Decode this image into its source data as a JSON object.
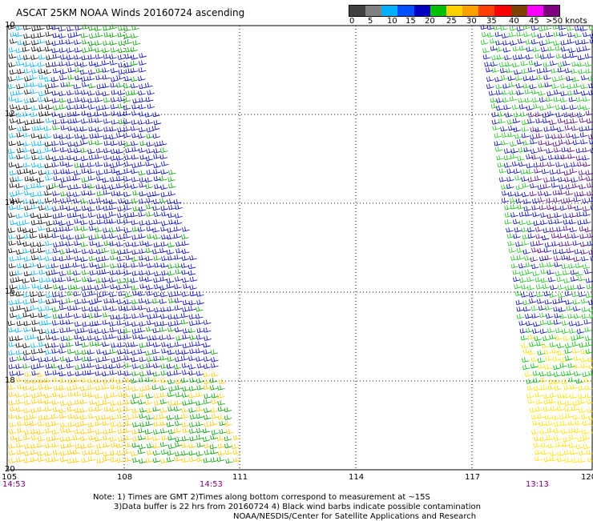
{
  "title": "ASCAT 25KM NOAA Winds 20160724 ascending",
  "colorbar": {
    "labels": [
      "0",
      "5",
      "10",
      "15",
      "20",
      "25",
      "30",
      "35",
      "40",
      "45",
      ">50 knots"
    ],
    "colors": [
      "#404040",
      "#808080",
      "#00b0ff",
      "#0050ff",
      "#0000c0",
      "#00c000",
      "#ffd000",
      "#ffa000",
      "#ff4000",
      "#ff0000",
      "#804000",
      "#ff00ff",
      "#800080"
    ]
  },
  "map": {
    "lat_labels": [
      "10",
      "12",
      "14",
      "16",
      "18",
      "20"
    ],
    "lon_labels": [
      "105",
      "108",
      "111",
      "114",
      "117",
      "120"
    ],
    "time_labels": [
      "14:53",
      "14:53",
      "13:13"
    ]
  },
  "swaths": [
    {
      "name": "west-swath",
      "time": "14:53"
    },
    {
      "name": "east-swath",
      "time": "13:13"
    }
  ],
  "notes": [
    "Note: 1) Times are GMT 2)Times along bottom correspond to measurement at ~15S",
    "3)Data buffer is 22 hrs from 20160724 4) Black wind barbs indicate possible contamination",
    "NOAA/NESDIS/Center for Satellite Applications and Research"
  ]
}
